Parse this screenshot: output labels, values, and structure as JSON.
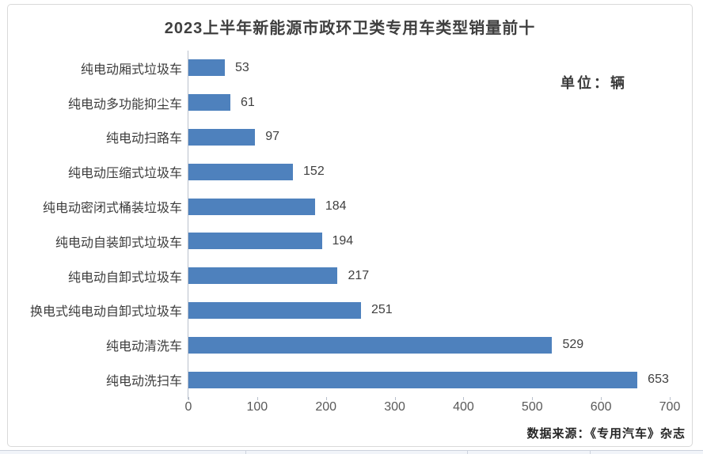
{
  "chart": {
    "title": "2023上半年新能源市政环卫类专用车类型销量前十",
    "unit_label": "单位：辆",
    "source": "数据来源：《专用汽车》杂志"
  },
  "chart_data": {
    "type": "bar",
    "orientation": "horizontal",
    "title": "2023上半年新能源市政环卫类专用车类型销量前十",
    "categories": [
      "纯电动厢式垃圾车",
      "纯电动多功能抑尘车",
      "纯电动扫路车",
      "纯电动压缩式垃圾车",
      "纯电动密闭式桶装垃圾车",
      "纯电动自装卸式垃圾车",
      "纯电动自卸式垃圾车",
      "换电式纯电动自卸式垃圾车",
      "纯电动清洗车",
      "纯电动洗扫车"
    ],
    "values": [
      53,
      61,
      97,
      152,
      184,
      194,
      217,
      251,
      529,
      653
    ],
    "data_labels": true,
    "xlabel": "",
    "ylabel": "",
    "unit": "辆",
    "xlim": [
      0,
      700
    ],
    "xticks": [
      0,
      100,
      200,
      300,
      400,
      500,
      600,
      700
    ],
    "grid": false,
    "legend": false,
    "bar_color": "#4E81BD",
    "source": "数据来源：《专用汽车》杂志"
  }
}
